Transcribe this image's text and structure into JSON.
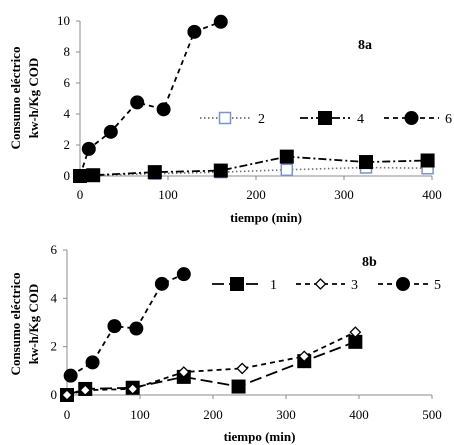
{
  "chart_data": [
    {
      "type": "line",
      "panel_label": "8a",
      "title": "",
      "xlabel": "tiempo (min)",
      "ylabel": [
        "Consumo eléctrico",
        "kw-h/Kg COD"
      ],
      "xlim": [
        0,
        400
      ],
      "ylim": [
        0,
        10
      ],
      "xticks": [
        0,
        100,
        200,
        300,
        400
      ],
      "yticks": [
        0,
        2,
        4,
        6,
        8,
        10
      ],
      "legend_position": "right",
      "series": [
        {
          "name": "2",
          "style": "dotted",
          "marker": "square-open",
          "color": "#6f6f6f",
          "markerColor": "#7b93c9",
          "x": [
            0,
            15,
            85,
            160,
            235,
            325,
            395
          ],
          "y": [
            0,
            0.05,
            0.15,
            0.25,
            0.4,
            0.55,
            0.5
          ]
        },
        {
          "name": "4",
          "style": "dashdot",
          "marker": "square",
          "color": "#000000",
          "markerColor": "#000000",
          "x": [
            0,
            15,
            85,
            160,
            235,
            325,
            395
          ],
          "y": [
            0,
            0.05,
            0.25,
            0.35,
            1.25,
            0.9,
            1.0
          ]
        },
        {
          "name": "6",
          "style": "dashed",
          "marker": "circle",
          "color": "#000000",
          "markerColor": "#000000",
          "x": [
            0,
            10,
            35,
            65,
            95,
            130,
            160
          ],
          "y": [
            0,
            1.75,
            2.85,
            4.75,
            4.3,
            9.3,
            9.95
          ]
        }
      ]
    },
    {
      "type": "line",
      "panel_label": "8b",
      "title": "",
      "xlabel": "tiempo (min)",
      "ylabel": [
        "Consumo eléctrico",
        "kw-h/Kg COD"
      ],
      "xlim": [
        0,
        500
      ],
      "ylim": [
        0,
        6
      ],
      "xticks": [
        0,
        100,
        200,
        300,
        400,
        500
      ],
      "yticks": [
        0,
        2,
        4,
        6
      ],
      "legend_position": "top-right",
      "series": [
        {
          "name": "1",
          "style": "longdash",
          "marker": "square",
          "color": "#000000",
          "markerColor": "#000000",
          "x": [
            0,
            25,
            90,
            160,
            235,
            325,
            395
          ],
          "y": [
            0,
            0.25,
            0.3,
            0.75,
            0.35,
            1.4,
            2.2
          ]
        },
        {
          "name": "3",
          "style": "dashed",
          "marker": "diamond-open",
          "color": "#000000",
          "markerColor": "#000000",
          "x": [
            0,
            25,
            90,
            160,
            240,
            325,
            395
          ],
          "y": [
            0,
            0.2,
            0.25,
            0.95,
            1.1,
            1.6,
            2.6
          ]
        },
        {
          "name": "5",
          "style": "dashed",
          "marker": "circle",
          "color": "#000000",
          "markerColor": "#000000",
          "x": [
            5,
            35,
            65,
            95,
            130,
            160
          ],
          "y": [
            0.8,
            1.35,
            2.85,
            2.75,
            4.6,
            5.0
          ]
        }
      ]
    }
  ]
}
